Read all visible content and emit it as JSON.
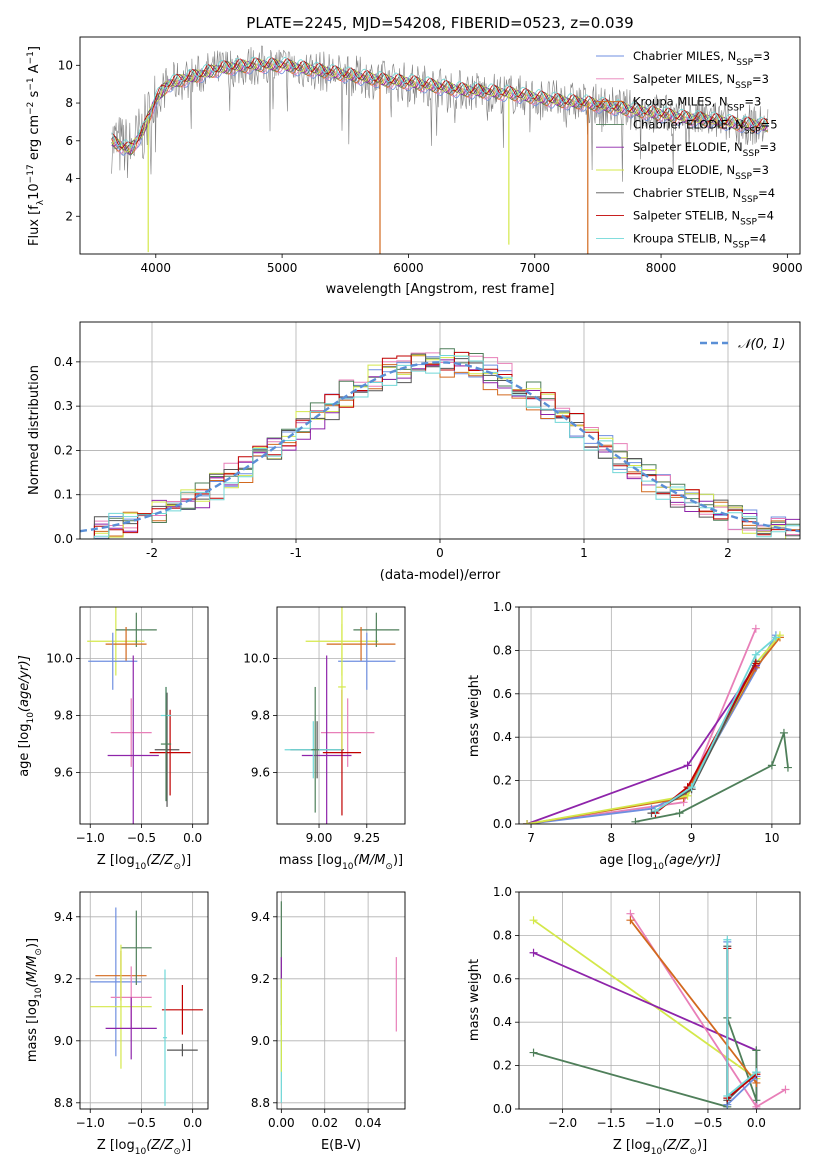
{
  "figure": {
    "title": "PLATE=2245, MJD=54208, FIBERID=0523, z=0.039"
  },
  "colors": {
    "Chabrier MILES": "#6f8fe0",
    "Salpeter MILES": "#e87fb8",
    "Kroupa MILES": "#d2691e",
    "Chabrier ELODIE": "#4f7f5a",
    "Salpeter ELODIE": "#8e24aa",
    "Kroupa ELODIE": "#d4e84a",
    "Chabrier STELIB": "#555555",
    "Salpeter STELIB": "#c00000",
    "Kroupa STELIB": "#70d8d8",
    "normal": "#5a8fd6"
  },
  "chart_data": [
    {
      "id": "spectrum",
      "type": "line",
      "title": "PLATE=2245, MJD=54208, FIBERID=0523, z=0.039",
      "xlabel": "wavelength [Angstrom, rest frame]",
      "ylabel_main": "Flux [f",
      "ylabel_sub": "λ",
      "ylabel_rest": "10",
      "ylabel_tail": " erg cm",
      "ylabel_tail2": " s",
      "ylabel_tail3": " A",
      "ylabel_exp1": "−17",
      "ylabel_exp2": "−2",
      "ylabel_exp3": "−1",
      "ylabel_exp4": "−1",
      "ylabel_close": "]",
      "xlim": [
        3400,
        9100
      ],
      "ylim": [
        0,
        11.5
      ],
      "xticks": [
        4000,
        5000,
        6000,
        7000,
        8000,
        9000
      ],
      "yticks": [
        2,
        4,
        6,
        8,
        10
      ],
      "grid": false,
      "legend_position": "top-right",
      "legend": [
        {
          "label": "Chabrier MILES, N",
          "sub": "SSP",
          "tail": "=3"
        },
        {
          "label": "Salpeter MILES, N",
          "sub": "SSP",
          "tail": "=3"
        },
        {
          "label": "Kroupa MILES, N",
          "sub": "SSP",
          "tail": "=3"
        },
        {
          "label": "Chabrier ELODIE, N",
          "sub": "SSP",
          "tail": "=5"
        },
        {
          "label": "Salpeter ELODIE, N",
          "sub": "SSP",
          "tail": "=3"
        },
        {
          "label": "Kroupa ELODIE, N",
          "sub": "SSP",
          "tail": "=3"
        },
        {
          "label": "Chabrier STELIB, N",
          "sub": "SSP",
          "tail": "=4"
        },
        {
          "label": "Salpeter STELIB, N",
          "sub": "SSP",
          "tail": "=4"
        },
        {
          "label": "Kroupa STELIB, N",
          "sub": "SSP",
          "tail": "=4"
        }
      ],
      "continuum": {
        "x": [
          3650,
          3700,
          3800,
          3900,
          4000,
          4100,
          4200,
          4300,
          4400,
          4500,
          4600,
          4800,
          5000,
          5200,
          5400,
          5600,
          5800,
          6000,
          6200,
          6400,
          6600,
          6800,
          7000,
          7200,
          7400,
          7600,
          7800,
          8000,
          8200,
          8400,
          8600,
          8800
        ],
        "y": [
          6.0,
          5.8,
          5.5,
          6.5,
          8.2,
          9.0,
          9.2,
          9.4,
          9.6,
          9.8,
          9.9,
          10.0,
          10.0,
          9.8,
          9.6,
          9.4,
          9.2,
          9.1,
          8.9,
          8.7,
          8.6,
          8.5,
          8.3,
          8.1,
          8.0,
          7.8,
          7.6,
          7.4,
          7.2,
          7.1,
          6.9,
          6.8
        ]
      },
      "dips": [
        {
          "x": 3940,
          "y": 0.1,
          "series": "Kroupa ELODIE"
        },
        {
          "x": 5775,
          "y": 0.0,
          "series": "Kroupa MILES"
        },
        {
          "x": 6795,
          "y": 0.5,
          "series": "Kroupa ELODIE"
        },
        {
          "x": 7420,
          "y": 0.0,
          "series": "Kroupa MILES"
        }
      ]
    },
    {
      "id": "residuals",
      "type": "histogram",
      "xlabel": "(data-model)/error",
      "ylabel": "Normed distribution",
      "xlim": [
        -2.5,
        2.5
      ],
      "ylim": [
        0,
        0.49
      ],
      "xticks": [
        -2,
        -1,
        0,
        1,
        2
      ],
      "yticks": [
        0.0,
        0.1,
        0.2,
        0.3,
        0.4
      ],
      "grid": true,
      "legend_position": "top-right",
      "legend_label": "𝒩(0, 1)",
      "bin_width": 0.1,
      "series": [
        {
          "name": "Chabrier MILES",
          "offset": 0.0
        },
        {
          "name": "Salpeter MILES",
          "offset": 0.012
        },
        {
          "name": "Kroupa MILES",
          "offset": -0.01
        },
        {
          "name": "Chabrier ELODIE",
          "offset": 0.006
        },
        {
          "name": "Salpeter ELODIE",
          "offset": -0.008
        },
        {
          "name": "Kroupa ELODIE",
          "offset": 0.009
        },
        {
          "name": "Chabrier STELIB",
          "offset": -0.004
        },
        {
          "name": "Salpeter STELIB",
          "offset": 0.004
        },
        {
          "name": "Kroupa STELIB",
          "offset": -0.012
        }
      ]
    },
    {
      "id": "age-vs-z",
      "type": "errorbar",
      "xlabel_main": "Z [log",
      "xlabel_sub": "10",
      "xlabel_tail": "(Z/Z",
      "xlabel_sun": "⊙",
      "xlabel_close": ")]",
      "ylabel_main": "age  [log",
      "ylabel_sub": "10",
      "ylabel_tail": "(age/yr)]",
      "xlim": [
        -1.1,
        0.15
      ],
      "ylim": [
        9.42,
        10.18
      ],
      "xticks": [
        -1.0,
        -0.5,
        0.0
      ],
      "xticklabels": [
        "−1.0",
        "−0.5",
        "0.0"
      ],
      "yticks": [
        9.6,
        9.8,
        10.0
      ],
      "grid": true,
      "points": [
        {
          "series": "Kroupa ELODIE",
          "x": -0.75,
          "y": 10.06,
          "xerr": 0.28,
          "yerr": 0.12
        },
        {
          "series": "Chabrier ELODIE",
          "x": -0.55,
          "y": 10.1,
          "xerr": 0.2,
          "yerr": 0.06
        },
        {
          "series": "Kroupa MILES",
          "x": -0.65,
          "y": 10.05,
          "xerr": 0.2,
          "yerr": 0.06
        },
        {
          "series": "Chabrier MILES",
          "x": -0.78,
          "y": 9.99,
          "xerr": 0.24,
          "yerr": 0.1
        },
        {
          "series": "Salpeter MILES",
          "x": -0.6,
          "y": 9.74,
          "xerr": 0.2,
          "yerr": 0.12
        },
        {
          "series": "Salpeter ELODIE",
          "x": -0.58,
          "y": 9.66,
          "xerr": 0.25,
          "yerr": 0.35
        },
        {
          "series": "Chabrier STELIB",
          "x": -0.25,
          "y": 9.68,
          "xerr": 0.12,
          "yerr": 0.2
        },
        {
          "series": "Salpeter STELIB",
          "x": -0.22,
          "y": 9.67,
          "xerr": 0.2,
          "yerr": 0.15
        },
        {
          "series": "Kroupa STELIB",
          "x": -0.26,
          "y": 9.8,
          "xerr": 0.05,
          "yerr": 0.1
        },
        {
          "series": "Chabrier ELODIE",
          "x": -0.26,
          "y": 9.7,
          "xerr": 0.05,
          "yerr": 0.2
        }
      ]
    },
    {
      "id": "age-vs-mass",
      "type": "errorbar",
      "xlabel_main": "mass [log",
      "xlabel_sub": "10",
      "xlabel_tail": "(M/M",
      "xlabel_sun": "⊙",
      "xlabel_close": ")]",
      "xlim": [
        8.78,
        9.45
      ],
      "ylim": [
        9.42,
        10.18
      ],
      "xticks": [
        9.0,
        9.25
      ],
      "xticklabels": [
        "9.00",
        "9.25"
      ],
      "yticks": [
        9.6,
        9.8,
        10.0
      ],
      "grid": true,
      "points": [
        {
          "series": "Kroupa ELODIE",
          "x": 9.12,
          "y": 10.06,
          "xerr": 0.19,
          "yerr": 0.12
        },
        {
          "series": "Chabrier ELODIE",
          "x": 9.3,
          "y": 10.1,
          "xerr": 0.12,
          "yerr": 0.06
        },
        {
          "series": "Kroupa MILES",
          "x": 9.22,
          "y": 10.05,
          "xerr": 0.18,
          "yerr": 0.06
        },
        {
          "series": "Chabrier MILES",
          "x": 9.25,
          "y": 9.99,
          "xerr": 0.15,
          "yerr": 0.1
        },
        {
          "series": "Salpeter MILES",
          "x": 9.15,
          "y": 9.74,
          "xerr": 0.14,
          "yerr": 0.12
        },
        {
          "series": "Salpeter ELODIE",
          "x": 9.04,
          "y": 9.66,
          "xerr": 0.13,
          "yerr": 0.35
        },
        {
          "series": "Chabrier STELIB",
          "x": 8.99,
          "y": 9.68,
          "xerr": 0.14,
          "yerr": 0.1
        },
        {
          "series": "Kroupa STELIB",
          "x": 8.97,
          "y": 9.68,
          "xerr": 0.15,
          "yerr": 0.1
        },
        {
          "series": "Salpeter STELIB",
          "x": 9.12,
          "y": 9.67,
          "xerr": 0.1,
          "yerr": 0.22
        },
        {
          "series": "Chabrier ELODIE",
          "x": 8.98,
          "y": 9.68,
          "xerr": 0.02,
          "yerr": 0.22
        },
        {
          "series": "Kroupa ELODIE",
          "x": 9.12,
          "y": 9.9,
          "xerr": 0.02,
          "yerr": 0.22
        }
      ]
    },
    {
      "id": "weight-vs-age",
      "type": "line",
      "xlabel_main": "age  [log",
      "xlabel_sub": "10",
      "xlabel_tail": "(age/yr)]",
      "ylabel": "mass weight",
      "xlim": [
        6.85,
        10.35
      ],
      "ylim": [
        0,
        1.0
      ],
      "xticks": [
        7,
        8,
        9,
        10
      ],
      "yticks": [
        0.0,
        0.2,
        0.4,
        0.6,
        0.8,
        1.0
      ],
      "grid": true,
      "series": [
        {
          "name": "Salpeter MILES",
          "x": [
            6.95,
            8.9,
            9.8
          ],
          "y": [
            0.0,
            0.1,
            0.9
          ]
        },
        {
          "name": "Chabrier MILES",
          "x": [
            6.95,
            8.5,
            8.95,
            10.05
          ],
          "y": [
            0.0,
            0.07,
            0.15,
            0.87
          ]
        },
        {
          "name": "Kroupa MILES",
          "x": [
            6.95,
            8.9,
            9.8,
            10.1
          ],
          "y": [
            0.0,
            0.12,
            0.72,
            0.86
          ]
        },
        {
          "name": "Chabrier ELODIE",
          "x": [
            8.3,
            8.85,
            10.0,
            10.15,
            10.2
          ],
          "y": [
            0.01,
            0.05,
            0.27,
            0.42,
            0.26
          ]
        },
        {
          "name": "Salpeter ELODIE",
          "x": [
            6.95,
            8.95,
            9.8
          ],
          "y": [
            0.0,
            0.27,
            0.73
          ]
        },
        {
          "name": "Kroupa ELODIE",
          "x": [
            6.95,
            8.95,
            9.8,
            10.1
          ],
          "y": [
            0.0,
            0.13,
            0.74,
            0.87
          ]
        },
        {
          "name": "Chabrier STELIB",
          "x": [
            8.5,
            9.0,
            9.8
          ],
          "y": [
            0.05,
            0.16,
            0.75
          ]
        },
        {
          "name": "Salpeter STELIB",
          "x": [
            8.55,
            8.95,
            9.8
          ],
          "y": [
            0.05,
            0.17,
            0.74
          ]
        },
        {
          "name": "Kroupa STELIB",
          "x": [
            8.55,
            9.0,
            9.8,
            10.05
          ],
          "y": [
            0.06,
            0.17,
            0.78,
            0.86
          ]
        }
      ]
    },
    {
      "id": "mass-vs-z",
      "type": "errorbar",
      "xlabel_main": "Z [log",
      "xlabel_sub": "10",
      "xlabel_tail": "(Z/Z",
      "xlabel_sun": "⊙",
      "xlabel_close": ")]",
      "ylabel_main": "mass [log",
      "ylabel_sub": "10",
      "ylabel_tail": "(M/M",
      "ylabel_sun": "⊙",
      "ylabel_close": ")]",
      "xlim": [
        -1.1,
        0.15
      ],
      "ylim": [
        8.78,
        9.48
      ],
      "xticks": [
        -1.0,
        -0.5,
        0.0
      ],
      "xticklabels": [
        "−1.0",
        "−0.5",
        "0.0"
      ],
      "yticks": [
        8.8,
        9.0,
        9.2,
        9.4
      ],
      "grid": true,
      "points": [
        {
          "series": "Chabrier MILES",
          "x": -0.75,
          "y": 9.19,
          "xerr": 0.25,
          "yerr": 0.24
        },
        {
          "series": "Kroupa MILES",
          "x": -0.7,
          "y": 9.21,
          "xerr": 0.25,
          "yerr": 0.08
        },
        {
          "series": "Chabrier ELODIE",
          "x": -0.55,
          "y": 9.3,
          "xerr": 0.15,
          "yerr": 0.12
        },
        {
          "series": "Salpeter MILES",
          "x": -0.6,
          "y": 9.14,
          "xerr": 0.2,
          "yerr": 0.1
        },
        {
          "series": "Kroupa ELODIE",
          "x": -0.7,
          "y": 9.11,
          "xerr": 0.3,
          "yerr": 0.2
        },
        {
          "series": "Salpeter ELODIE",
          "x": -0.6,
          "y": 9.04,
          "xerr": 0.25,
          "yerr": 0.1
        },
        {
          "series": "Salpeter STELIB",
          "x": -0.1,
          "y": 9.1,
          "xerr": 0.2,
          "yerr": 0.08
        },
        {
          "series": "Chabrier STELIB",
          "x": -0.1,
          "y": 8.97,
          "xerr": 0.15,
          "yerr": 0.02
        },
        {
          "series": "Kroupa STELIB",
          "x": -0.27,
          "y": 9.01,
          "xerr": 0.02,
          "yerr": 0.22
        }
      ]
    },
    {
      "id": "mass-vs-ebv",
      "type": "errorbar",
      "xlabel": "E(B-V)",
      "xlim": [
        -0.002,
        0.057
      ],
      "ylim": [
        8.78,
        9.48
      ],
      "xticks": [
        0.0,
        0.02,
        0.04
      ],
      "xticklabels": [
        "0.00",
        "0.02",
        "0.04"
      ],
      "yticks": [
        8.8,
        9.0,
        9.2,
        9.4
      ],
      "grid": true,
      "points": [
        {
          "series": "Chabrier ELODIE",
          "x": 0.0,
          "y": 9.25,
          "xerr": 0.0,
          "yerr": 0.2
        },
        {
          "series": "Salpeter ELODIE",
          "x": 0.0,
          "y": 9.22,
          "xerr": 0.0,
          "yerr": 0.05
        },
        {
          "series": "Kroupa STELIB",
          "x": 0.0,
          "y": 9.0,
          "xerr": 0.0,
          "yerr": 0.2
        },
        {
          "series": "Kroupa ELODIE",
          "x": 0.0,
          "y": 9.05,
          "xerr": 0.0,
          "yerr": 0.15
        },
        {
          "series": "Salpeter MILES",
          "x": 0.053,
          "y": 9.15,
          "xerr": 0.0,
          "yerr": 0.12
        }
      ]
    },
    {
      "id": "weight-vs-z",
      "type": "line",
      "xlabel_main": "Z [log",
      "xlabel_sub": "10",
      "xlabel_tail": "(Z/Z",
      "xlabel_sun": "⊙",
      "xlabel_close": ")]",
      "ylabel": "mass weight",
      "xlim": [
        -2.45,
        0.45
      ],
      "ylim": [
        0,
        1.0
      ],
      "xticks": [
        -2.0,
        -1.5,
        -1.0,
        -0.5,
        0.0
      ],
      "xticklabels": [
        "−2.0",
        "−1.5",
        "−1.0",
        "−0.5",
        "0.0"
      ],
      "yticks": [
        0.0,
        0.2,
        0.4,
        0.6,
        0.8,
        1.0
      ],
      "grid": true,
      "series": [
        {
          "name": "Kroupa ELODIE",
          "x": [
            -2.3,
            0.0
          ],
          "y": [
            0.87,
            0.14
          ]
        },
        {
          "name": "Salpeter ELODIE",
          "x": [
            -2.3,
            0.0,
            0.0
          ],
          "y": [
            0.72,
            0.27,
            0.0
          ]
        },
        {
          "name": "Chabrier ELODIE",
          "x": [
            -2.3,
            -0.3,
            -0.3,
            0.0,
            0.0
          ],
          "y": [
            0.26,
            0.01,
            0.42,
            0.04,
            0.27
          ]
        },
        {
          "name": "Salpeter MILES",
          "x": [
            -1.3,
            0.0,
            0.3
          ],
          "y": [
            0.9,
            0.01,
            0.09
          ]
        },
        {
          "name": "Kroupa MILES",
          "x": [
            -1.3,
            0.0
          ],
          "y": [
            0.87,
            0.12
          ]
        },
        {
          "name": "Chabrier MILES",
          "x": [
            -0.3,
            -0.3,
            0.0
          ],
          "y": [
            0.77,
            0.02,
            0.15
          ]
        },
        {
          "name": "Chabrier STELIB",
          "x": [
            -0.3,
            -0.3,
            0.0
          ],
          "y": [
            0.75,
            0.04,
            0.17
          ]
        },
        {
          "name": "Salpeter STELIB",
          "x": [
            -0.3,
            -0.3,
            0.0
          ],
          "y": [
            0.74,
            0.05,
            0.16
          ]
        },
        {
          "name": "Kroupa STELIB",
          "x": [
            -0.3,
            -0.3,
            0.0
          ],
          "y": [
            0.78,
            0.06,
            0.17
          ]
        }
      ]
    }
  ]
}
